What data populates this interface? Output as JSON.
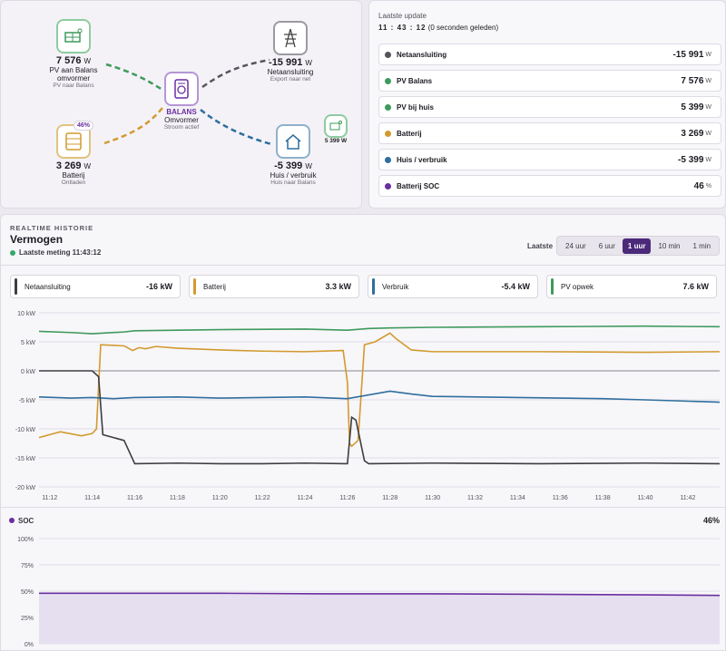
{
  "flow": {
    "pv": {
      "value": "7 576",
      "unit": "W",
      "label": "PV aan Balans omvormer",
      "sub": "PV naar Balans"
    },
    "grid": {
      "value": "-15 991",
      "unit": "W",
      "label": "Netaansluiting",
      "sub": "Export naar net"
    },
    "inverter": {
      "title": "BALANS",
      "label": "Omvormer",
      "sub": "Stroom actief"
    },
    "battery": {
      "value": "3 269",
      "unit": "W",
      "label": "Batterij",
      "sub": "Ontladen",
      "soc_badge": "46%"
    },
    "house": {
      "value": "-5 399",
      "unit": "W",
      "label": "Huis / verbruik",
      "sub": "Huis naar Balans"
    },
    "house_pv": {
      "value": "5 399 W"
    }
  },
  "status": {
    "update_label": "Laatste update",
    "update_time": "11 : 43 : 12",
    "update_note": "(0 seconden geleden)",
    "rows": [
      {
        "label": "Netaansluiting",
        "value": "-15 991",
        "unit": "W",
        "color": "#55555b"
      },
      {
        "label": "PV Balans",
        "value": "7 576",
        "unit": "W",
        "color": "#3e9a5b"
      },
      {
        "label": "PV bij huis",
        "value": "5 399",
        "unit": "W",
        "color": "#3e9a5b"
      },
      {
        "label": "Batterij",
        "value": "3 269",
        "unit": "W",
        "color": "#d29a2e"
      },
      {
        "label": "Huis / verbruik",
        "value": "-5 399",
        "unit": "W",
        "color": "#2f6e9e"
      },
      {
        "label": "Batterij SOC",
        "value": "46",
        "unit": "%",
        "color": "#6a2ea0"
      }
    ]
  },
  "history": {
    "section": "REALTIME HISTORIE",
    "title": "Vermogen",
    "last_measure": "Laatste meting 11:43:12",
    "range_label": "Laatste",
    "ranges": [
      "24 uur",
      "6 uur",
      "1 uur",
      "10 min",
      "1 min"
    ],
    "active_range": "1 uur",
    "legend": [
      {
        "label": "Netaansluiting",
        "value": "-16 kW",
        "color": "#3d3d42"
      },
      {
        "label": "Batterij",
        "value": "3.3 kW",
        "color": "#d29a2e"
      },
      {
        "label": "Verbruik",
        "value": "-5.4 kW",
        "color": "#2f6e9e"
      },
      {
        "label": "PV opwek",
        "value": "7.6 kW",
        "color": "#3e9a5b"
      }
    ]
  },
  "chart_data": [
    {
      "type": "line",
      "title": "",
      "ylabel": "",
      "ylim": [
        -20,
        10
      ],
      "y_ticks": [
        "10 kW",
        "5 kW",
        "0 kW",
        "-5 kW",
        "-10 kW",
        "-15 kW",
        "-20 kW"
      ],
      "x_ticks": [
        "11:12",
        "11:14",
        "11:16",
        "11:18",
        "11:20",
        "11:22",
        "11:24",
        "11:26",
        "11:28",
        "11:30",
        "11:32",
        "11:34",
        "11:36",
        "11:38",
        "11:40",
        "11:42"
      ],
      "x_range_minutes": [
        11.5,
        43.5
      ],
      "series": [
        {
          "name": "PV opwek",
          "color": "#3e9a5b",
          "x": [
            11.5,
            13,
            14,
            15.5,
            16,
            18,
            20,
            24,
            26,
            27,
            28,
            30,
            35,
            40,
            43.5
          ],
          "y": [
            6.8,
            6.6,
            6.4,
            6.7,
            6.9,
            7.0,
            7.1,
            7.2,
            7.0,
            7.3,
            7.4,
            7.5,
            7.6,
            7.7,
            7.6
          ]
        },
        {
          "name": "Batterij",
          "color": "#d29a2e",
          "x": [
            11.5,
            12.5,
            13.5,
            14,
            14.2,
            14.4,
            15.5,
            15.9,
            16.2,
            16.5,
            17,
            18,
            20,
            22,
            24,
            25.8,
            26,
            26.1,
            26.2,
            26.5,
            26.8,
            27.3,
            28,
            28.3,
            29,
            30,
            35,
            40,
            43.5
          ],
          "y": [
            -11.5,
            -10.5,
            -11.2,
            -10.8,
            -10.0,
            4.5,
            4.3,
            3.5,
            4.0,
            3.8,
            4.2,
            3.9,
            3.6,
            3.4,
            3.3,
            3.5,
            -2.0,
            -12.5,
            -13.0,
            -12.0,
            4.5,
            5.0,
            6.5,
            5.5,
            3.6,
            3.3,
            3.3,
            3.2,
            3.3
          ]
        },
        {
          "name": "Verbruik",
          "color": "#2f6e9e",
          "x": [
            11.5,
            13,
            14,
            15,
            16,
            18,
            20,
            22,
            24,
            26,
            28,
            29,
            30,
            34,
            38,
            40,
            43.5
          ],
          "y": [
            -4.5,
            -4.7,
            -4.6,
            -4.8,
            -4.6,
            -4.5,
            -4.7,
            -4.6,
            -4.5,
            -4.8,
            -3.5,
            -4.0,
            -4.4,
            -4.6,
            -4.8,
            -5.0,
            -5.4
          ]
        },
        {
          "name": "Netaansluiting",
          "color": "#3d3d42",
          "x": [
            11.5,
            14,
            14.3,
            14.5,
            15.5,
            16,
            18,
            20,
            22,
            24,
            26,
            26.2,
            26.4,
            26.8,
            27,
            30,
            35,
            40,
            43.5
          ],
          "y": [
            0,
            0,
            -1.0,
            -11.0,
            -12.0,
            -16.0,
            -15.9,
            -16.0,
            -16.0,
            -15.9,
            -16.0,
            -8.0,
            -8.5,
            -15.5,
            -16.0,
            -15.9,
            -16.0,
            -15.9,
            -16.0
          ]
        }
      ]
    },
    {
      "type": "area",
      "title": "SOC",
      "current": "46%",
      "ylim": [
        0,
        100
      ],
      "y_ticks": [
        "100%",
        "75%",
        "50%",
        "25%",
        "0%"
      ],
      "series": [
        {
          "name": "SOC",
          "color": "#6a2ea0",
          "x": [
            11.5,
            15,
            20,
            25,
            30,
            35,
            40,
            43.5
          ],
          "y": [
            48,
            48,
            48,
            47.5,
            47.5,
            47,
            46.5,
            46
          ]
        }
      ]
    }
  ]
}
